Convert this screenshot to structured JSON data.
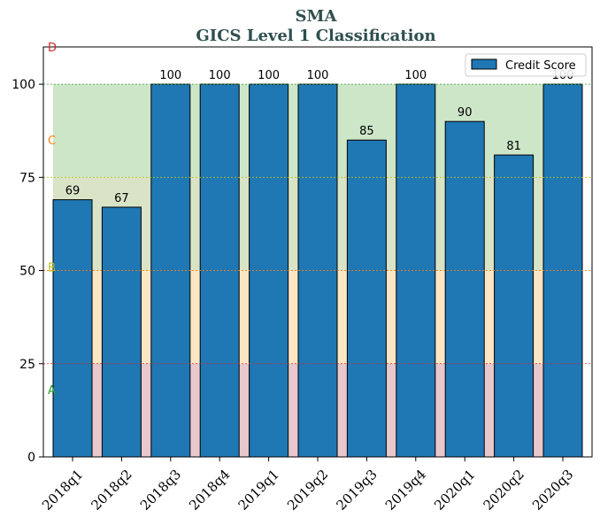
{
  "chart_data": {
    "type": "bar",
    "title": "SMA",
    "subtitle": "GICS Level 1 Classification",
    "xlabel": "",
    "ylabel": "",
    "ylim": [
      0,
      110
    ],
    "yticks": [
      0,
      25,
      50,
      75,
      100
    ],
    "categories": [
      "2018q1",
      "2018q2",
      "2018q3",
      "2018q4",
      "2019q1",
      "2019q2",
      "2019q3",
      "2019q4",
      "2020q1",
      "2020q2",
      "2020q3"
    ],
    "series": [
      {
        "name": "Credit Score",
        "values": [
          69,
          67,
          100,
          100,
          100,
          100,
          85,
          100,
          90,
          81,
          100
        ],
        "color": "#1f77b4"
      }
    ],
    "data_labels": [
      "69",
      "67",
      "100",
      "100",
      "100",
      "100",
      "85",
      "100",
      "90",
      "81",
      "100"
    ],
    "legend": {
      "position": "top-right"
    },
    "grid": false,
    "bands": [
      {
        "label": "A",
        "from": 0,
        "to": 25,
        "color": "#e8c8cc",
        "line_color": "#d62728",
        "label_color": "#2ca02c"
      },
      {
        "label": "B",
        "from": 25,
        "to": 50,
        "color": "#fde6c3",
        "line_color": "#ff7f0e",
        "label_color": "#bcbd22"
      },
      {
        "label": "C",
        "from": 50,
        "to": 75,
        "color": "#d9e3c6",
        "line_color": "#bcbd22",
        "label_color": "#ff7f0e"
      },
      {
        "label": "D",
        "from": 75,
        "to": 100,
        "color": "#cde6c8",
        "line_color": "#2ca02c",
        "label_color": "#d62728"
      }
    ]
  }
}
